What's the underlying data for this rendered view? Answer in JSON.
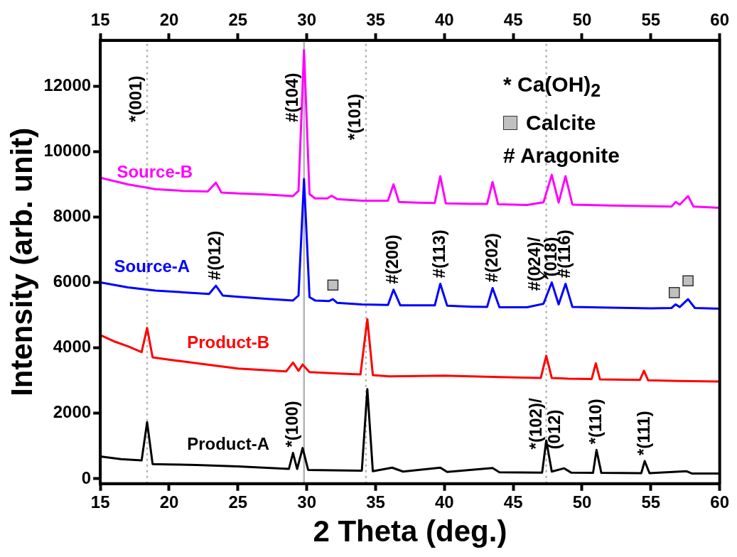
{
  "chart_data": {
    "type": "line",
    "xlabel": "2 Theta (deg.)",
    "ylabel": "Intensity (arb. unit)",
    "xlim": [
      15,
      60
    ],
    "xticks": [
      15,
      20,
      25,
      30,
      35,
      40,
      45,
      50,
      55,
      60
    ],
    "x2lim": [
      15,
      60
    ],
    "x2ticks": [
      15,
      20,
      25,
      30,
      35,
      40,
      45,
      50,
      55,
      60
    ],
    "ylim": [
      -150,
      13400
    ],
    "yticks": [
      0,
      2000,
      4000,
      6000,
      8000,
      10000,
      12000
    ],
    "grid": false,
    "legend": "top right",
    "marker": "none",
    "line_style": "solid",
    "series": [
      {
        "name": "Source-B",
        "color": "#ff00ff",
        "x": [
          15,
          17,
          19,
          21,
          22.8,
          23.4,
          23.8,
          25,
          27,
          29,
          29.4,
          29.8,
          30.2,
          30.6,
          31.5,
          31.8,
          32.2,
          34,
          35.9,
          36.3,
          36.7,
          38,
          39.3,
          39.7,
          40.1,
          42,
          43.1,
          43.5,
          43.9,
          46,
          47.2,
          47.8,
          48.3,
          48.8,
          49.3,
          52,
          55,
          56.5,
          56.8,
          57.1,
          57.7,
          58.1,
          60
        ],
        "values": [
          9200,
          9000,
          8850,
          8800,
          8780,
          9050,
          8750,
          8720,
          8690,
          8640,
          8800,
          13100,
          8700,
          8570,
          8570,
          8650,
          8550,
          8500,
          8500,
          9000,
          8460,
          8440,
          8430,
          9250,
          8420,
          8400,
          8400,
          9070,
          8390,
          8370,
          8450,
          9290,
          8440,
          9250,
          8380,
          8350,
          8330,
          8320,
          8460,
          8380,
          8640,
          8320,
          8280
        ]
      },
      {
        "name": "Source-A",
        "color": "#0000ff",
        "x": [
          15,
          17,
          19,
          21,
          22.9,
          23.4,
          23.9,
          25,
          27,
          29,
          29.4,
          29.8,
          30.2,
          30.6,
          31.6,
          31.9,
          32.2,
          34,
          35.9,
          36.3,
          36.8,
          38,
          39.3,
          39.7,
          40.2,
          42,
          43.1,
          43.5,
          44,
          46,
          47.2,
          47.8,
          48.3,
          48.8,
          49.3,
          52,
          55,
          56.5,
          56.8,
          57.1,
          57.7,
          58.2,
          60
        ],
        "values": [
          6000,
          5850,
          5750,
          5700,
          5650,
          5900,
          5600,
          5560,
          5500,
          5450,
          5600,
          9160,
          5550,
          5450,
          5430,
          5490,
          5380,
          5330,
          5310,
          5780,
          5300,
          5300,
          5300,
          5960,
          5290,
          5260,
          5250,
          5830,
          5240,
          5240,
          5350,
          6000,
          5330,
          5960,
          5250,
          5230,
          5210,
          5220,
          5330,
          5250,
          5490,
          5220,
          5200
        ]
      },
      {
        "name": "Product-B",
        "color": "#ff0000",
        "x": [
          15,
          16,
          17,
          18,
          18.4,
          18.8,
          20,
          22,
          25,
          28.5,
          29,
          29.4,
          29.7,
          30.2,
          32,
          33.9,
          34.4,
          34.8,
          36,
          40,
          44,
          47,
          47.4,
          47.8,
          49,
          50.7,
          51,
          51.3,
          54.2,
          54.5,
          54.8,
          57,
          60
        ],
        "values": [
          4390,
          4200,
          4050,
          3870,
          4610,
          3710,
          3640,
          3530,
          3370,
          3280,
          3550,
          3300,
          3490,
          3260,
          3220,
          3190,
          4880,
          3170,
          3130,
          3150,
          3110,
          3080,
          3760,
          3080,
          3060,
          3050,
          3530,
          3040,
          3020,
          3300,
          3010,
          2990,
          2970
        ]
      },
      {
        "name": "Product-A",
        "color": "#000000",
        "x": [
          15,
          16.5,
          18,
          18.4,
          18.8,
          20,
          22,
          25,
          28.7,
          29,
          29.3,
          29.7,
          30.1,
          32,
          34,
          34.4,
          34.8,
          36.2,
          37,
          39.7,
          40.2,
          43.5,
          44,
          47.1,
          47.4,
          47.8,
          48.7,
          49.2,
          50.8,
          51.05,
          51.4,
          54.3,
          54.55,
          54.9,
          57.6,
          58,
          60
        ],
        "values": [
          680,
          600,
          560,
          1730,
          450,
          440,
          420,
          380,
          300,
          790,
          300,
          940,
          270,
          260,
          250,
          2740,
          230,
          340,
          220,
          340,
          210,
          330,
          200,
          190,
          1170,
          220,
          320,
          190,
          180,
          880,
          180,
          170,
          540,
          170,
          230,
          160,
          160
        ]
      },
      {
        "type": "scatter",
        "name": "Calcite",
        "color": "#c0c0c0",
        "marker": "square",
        "x": [
          31.9,
          56.7,
          57.7
        ],
        "values": [
          5920,
          5690,
          6050
        ]
      }
    ],
    "ref_lines": [
      {
        "axis": "x",
        "value": 18.4,
        "color": "#b4b4b4",
        "line_style": "dotted"
      },
      {
        "axis": "x",
        "value": 29.8,
        "color": "#b4b4b4",
        "line_style": "solid"
      },
      {
        "axis": "x",
        "value": 34.3,
        "color": "#b4b4b4",
        "line_style": "dotted"
      },
      {
        "axis": "x",
        "value": 47.4,
        "color": "#b4b4b4",
        "line_style": "dotted"
      }
    ],
    "annotations": [
      "* Ca(OH)$_{2}$",
      "# Aragonite",
      {
        "text": "*(001)",
        "x": 18.4,
        "y": 10900
      },
      {
        "text": "#(104)",
        "x": 29.8,
        "y": 10900
      },
      {
        "text": "*(101)",
        "x": 34.3,
        "y": 10350
      },
      {
        "text": "#(012)",
        "x": 23.4,
        "y": 5900
      },
      {
        "text": "#(200)",
        "x": 36.3,
        "y": 5780
      },
      {
        "text": "#(113)",
        "x": 39.7,
        "y": 5960
      },
      {
        "text": "#(202)",
        "x": 43.5,
        "y": 5830
      },
      {
        "text": "#(024)/",
        "x": 47.4,
        "y": 5740
      },
      {
        "text": "(018)",
        "x": 47.8,
        "y": 6000
      },
      {
        "text": "#(116)",
        "x": 48.8,
        "y": 5960
      },
      {
        "text": "*(100)",
        "x": 29,
        "y": 790
      },
      {
        "text": "*(102)/\n(012)",
        "x": 47.4,
        "y": 900
      },
      {
        "text": "*(110)",
        "x": 51.05,
        "y": 880
      },
      {
        "text": "*(111)",
        "x": 54.55,
        "y": 540
      }
    ]
  }
}
